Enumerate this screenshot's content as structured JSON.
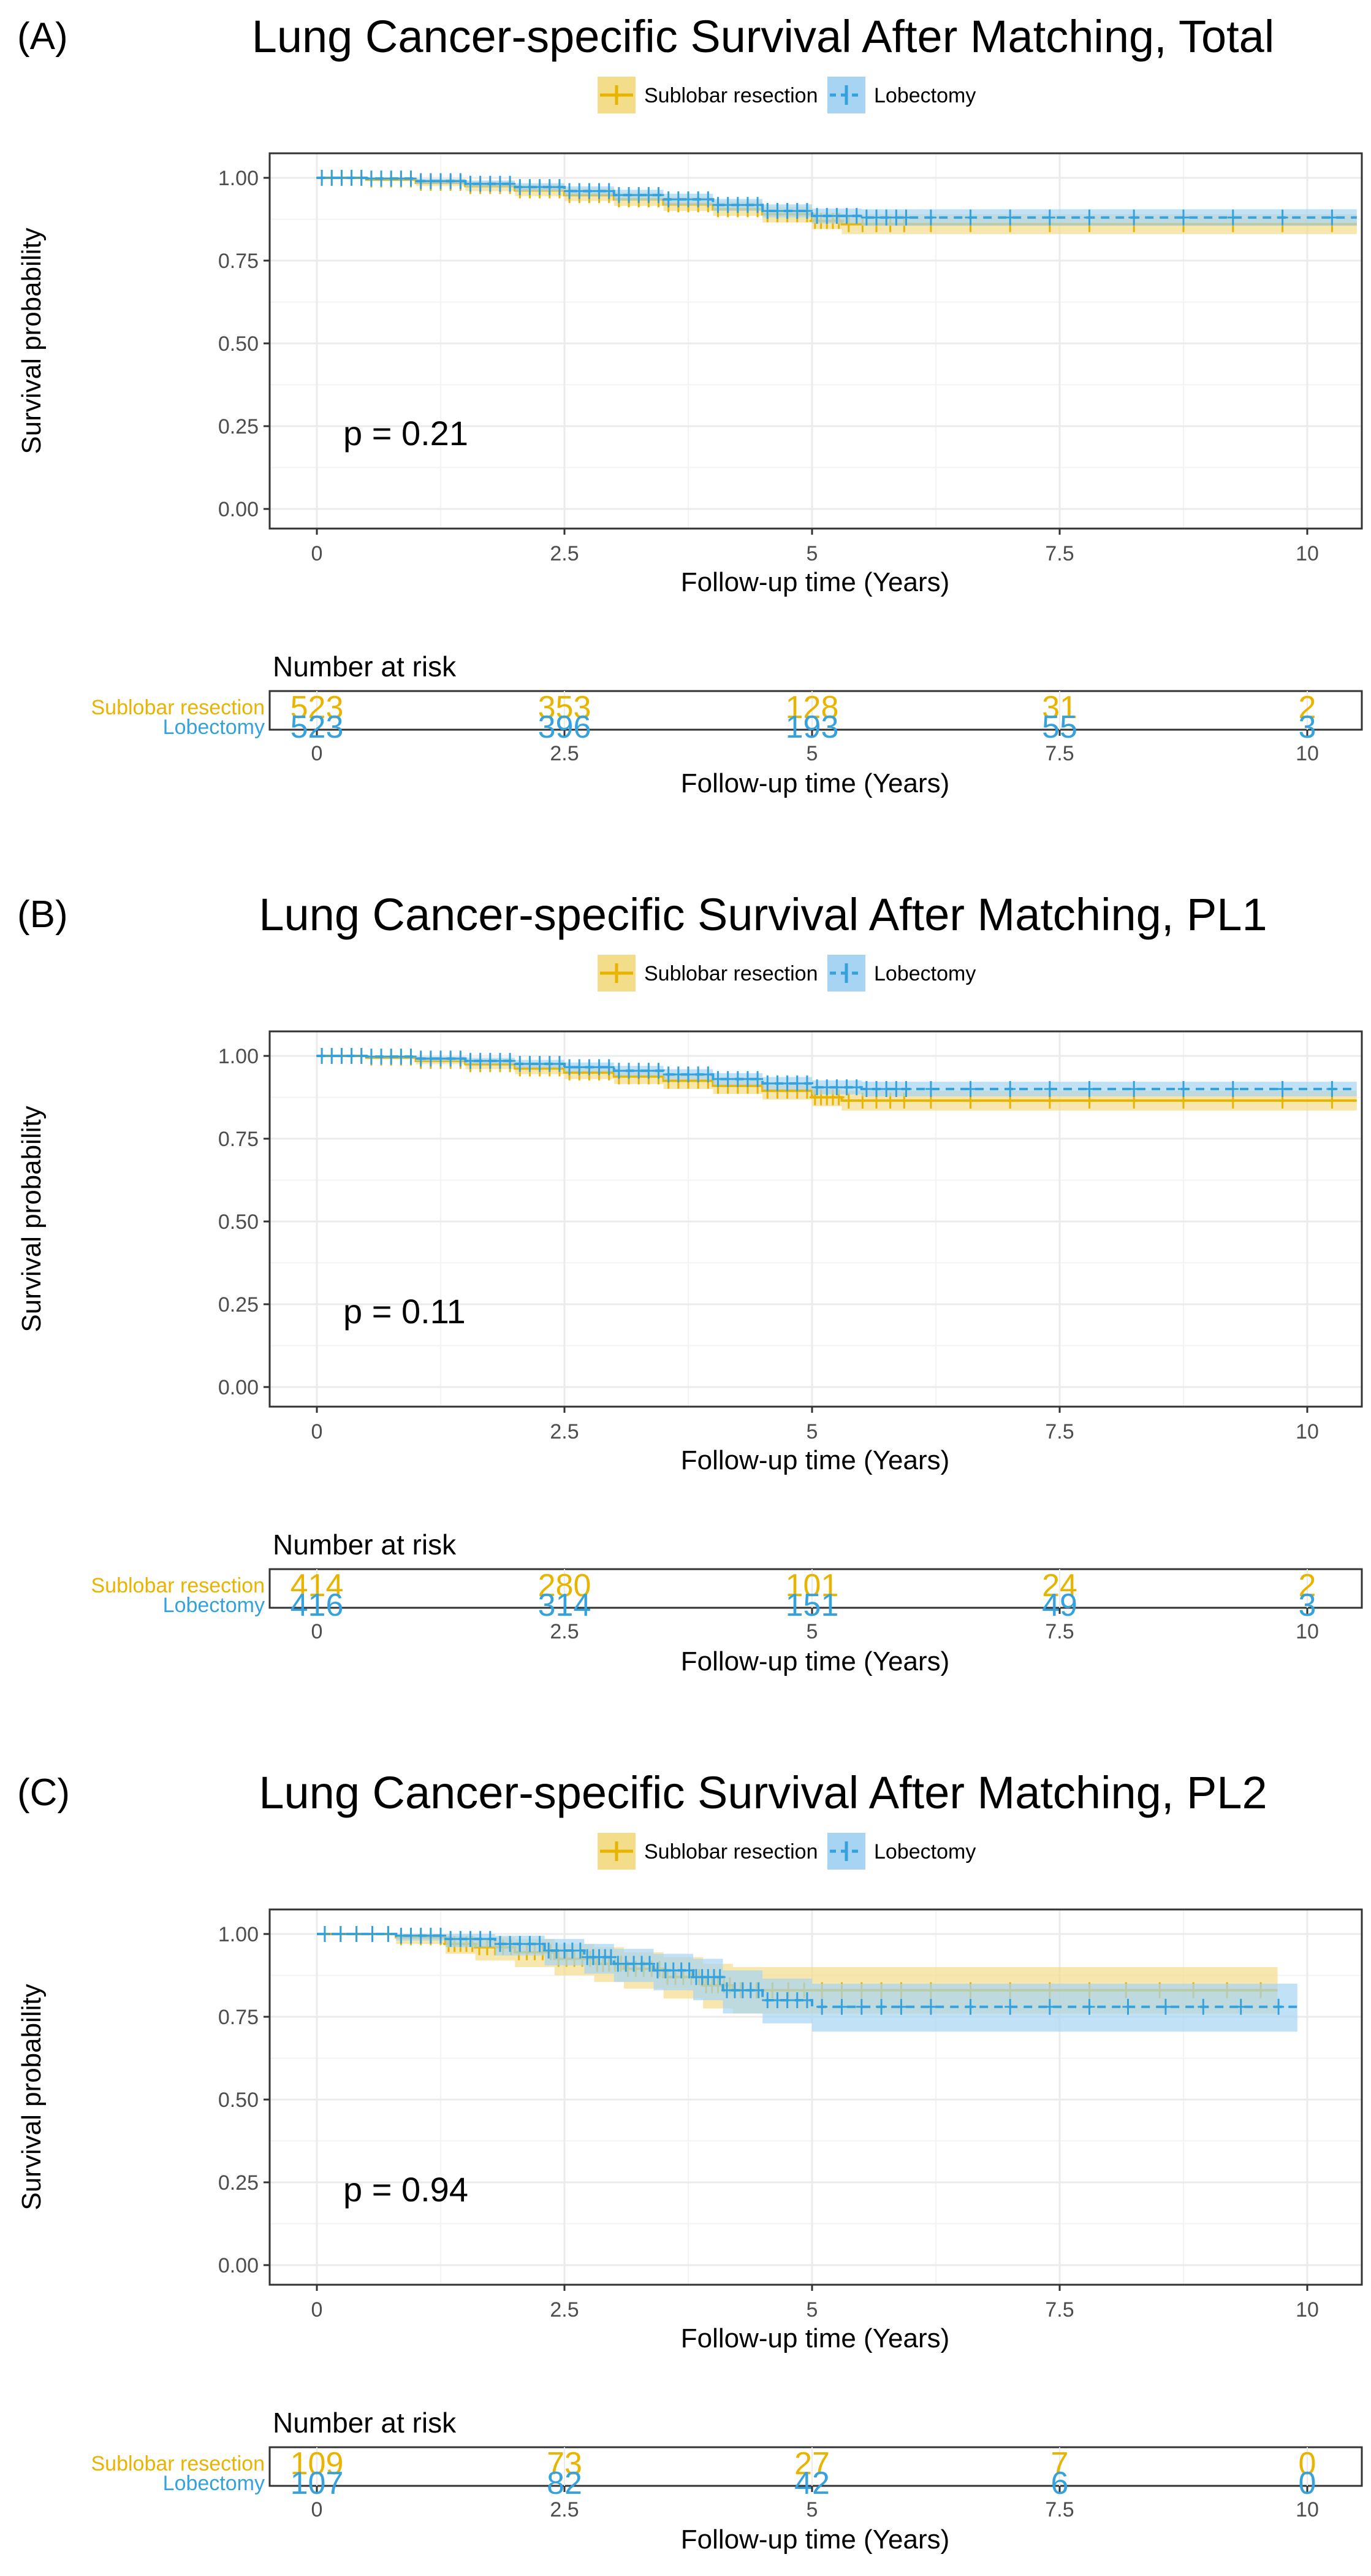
{
  "colors": {
    "sublobar": "#E8B400",
    "lobectomy": "#35A2DE",
    "sublobar_band": "#F3DC8A",
    "lobectomy_band": "#A7D4F2",
    "grid": "#ebebeb",
    "frame": "#333333"
  },
  "chart_data": [
    {
      "type": "line",
      "panel_label": "(A)",
      "title": "Lung Cancer-specific Survival After Matching, Total",
      "xlabel": "Follow-up time (Years)",
      "ylabel": "Survival probability",
      "xlim": [
        0,
        10.5
      ],
      "ylim": [
        0,
        1
      ],
      "xticks": [
        "0",
        "2.5",
        "5",
        "7.5",
        "10"
      ],
      "xtick_values": [
        0,
        2.5,
        5,
        7.5,
        10
      ],
      "yticks": [
        "0.00",
        "0.25",
        "0.50",
        "0.75",
        "1.00"
      ],
      "ytick_values": [
        0,
        0.25,
        0.5,
        0.75,
        1
      ],
      "pvalue": "p = 0.21",
      "legend": [
        "Sublobar resection",
        "Lobectomy"
      ],
      "series": [
        {
          "name": "Sublobar resection",
          "x": [
            0,
            0.5,
            1.0,
            1.5,
            2.0,
            2.5,
            3.0,
            3.5,
            4.0,
            4.5,
            5.0,
            5.3,
            6.0,
            8.0,
            10.5
          ],
          "y": [
            1.0,
            0.995,
            0.985,
            0.975,
            0.962,
            0.948,
            0.935,
            0.92,
            0.905,
            0.89,
            0.87,
            0.86,
            0.86,
            0.86,
            0.86
          ],
          "lower": [
            1.0,
            0.99,
            0.975,
            0.96,
            0.945,
            0.93,
            0.915,
            0.9,
            0.885,
            0.865,
            0.845,
            0.83,
            0.83,
            0.83,
            0.83
          ],
          "upper": [
            1.0,
            1.0,
            0.995,
            0.99,
            0.98,
            0.968,
            0.955,
            0.942,
            0.928,
            0.912,
            0.895,
            0.89,
            0.89,
            0.89,
            0.89
          ]
        },
        {
          "name": "Lobectomy",
          "x": [
            0,
            0.5,
            1.0,
            1.5,
            2.0,
            2.5,
            3.0,
            3.5,
            4.0,
            4.5,
            5.0,
            5.5,
            6.0,
            8.0,
            10.5
          ],
          "y": [
            1.0,
            0.998,
            0.99,
            0.982,
            0.972,
            0.96,
            0.948,
            0.935,
            0.918,
            0.9,
            0.885,
            0.88,
            0.88,
            0.88,
            0.88
          ],
          "lower": [
            1.0,
            0.994,
            0.982,
            0.972,
            0.96,
            0.946,
            0.932,
            0.918,
            0.9,
            0.88,
            0.862,
            0.855,
            0.855,
            0.855,
            0.855
          ],
          "upper": [
            1.0,
            1.0,
            0.997,
            0.992,
            0.984,
            0.974,
            0.964,
            0.952,
            0.936,
            0.92,
            0.907,
            0.905,
            0.905,
            0.905,
            0.905
          ]
        }
      ],
      "risk_table": {
        "title": "Number at risk",
        "rows": [
          {
            "label": "Sublobar resection",
            "values": [
              "523",
              "353",
              "128",
              "31",
              "2"
            ]
          },
          {
            "label": "Lobectomy",
            "values": [
              "523",
              "396",
              "193",
              "55",
              "3"
            ]
          }
        ]
      }
    },
    {
      "type": "line",
      "panel_label": "(B)",
      "title": "Lung Cancer-specific Survival After Matching, PL1",
      "xlabel": "Follow-up time (Years)",
      "ylabel": "Survival probability",
      "xlim": [
        0,
        10.5
      ],
      "ylim": [
        0,
        1
      ],
      "xticks": [
        "0",
        "2.5",
        "5",
        "7.5",
        "10"
      ],
      "xtick_values": [
        0,
        2.5,
        5,
        7.5,
        10
      ],
      "yticks": [
        "0.00",
        "0.25",
        "0.50",
        "0.75",
        "1.00"
      ],
      "ytick_values": [
        0,
        0.25,
        0.5,
        0.75,
        1
      ],
      "pvalue": "p = 0.11",
      "legend": [
        "Sublobar resection",
        "Lobectomy"
      ],
      "series": [
        {
          "name": "Sublobar resection",
          "x": [
            0,
            0.5,
            1.0,
            1.5,
            2.0,
            2.5,
            3.0,
            3.5,
            4.0,
            4.5,
            5.0,
            5.3,
            6.0,
            8.0,
            10.5
          ],
          "y": [
            1.0,
            0.995,
            0.985,
            0.975,
            0.962,
            0.95,
            0.938,
            0.925,
            0.91,
            0.895,
            0.875,
            0.865,
            0.865,
            0.865,
            0.865
          ],
          "lower": [
            1.0,
            0.99,
            0.975,
            0.96,
            0.945,
            0.93,
            0.915,
            0.9,
            0.885,
            0.868,
            0.848,
            0.835,
            0.835,
            0.835,
            0.835
          ],
          "upper": [
            1.0,
            1.0,
            0.995,
            0.99,
            0.98,
            0.97,
            0.96,
            0.948,
            0.935,
            0.92,
            0.9,
            0.895,
            0.895,
            0.895,
            0.895
          ]
        },
        {
          "name": "Lobectomy",
          "x": [
            0,
            0.5,
            1.0,
            1.5,
            2.0,
            2.5,
            3.0,
            3.5,
            4.0,
            4.5,
            5.0,
            5.5,
            6.0,
            8.0,
            10.5
          ],
          "y": [
            1.0,
            0.998,
            0.992,
            0.985,
            0.976,
            0.966,
            0.955,
            0.944,
            0.93,
            0.917,
            0.905,
            0.9,
            0.9,
            0.9,
            0.9
          ],
          "lower": [
            1.0,
            0.994,
            0.984,
            0.975,
            0.964,
            0.952,
            0.94,
            0.928,
            0.912,
            0.898,
            0.884,
            0.878,
            0.878,
            0.878,
            0.878
          ],
          "upper": [
            1.0,
            1.0,
            0.998,
            0.995,
            0.988,
            0.98,
            0.97,
            0.96,
            0.948,
            0.936,
            0.926,
            0.922,
            0.922,
            0.922,
            0.922
          ]
        }
      ],
      "risk_table": {
        "title": "Number at risk",
        "rows": [
          {
            "label": "Sublobar resection",
            "values": [
              "414",
              "280",
              "101",
              "24",
              "2"
            ]
          },
          {
            "label": "Lobectomy",
            "values": [
              "416",
              "314",
              "151",
              "49",
              "3"
            ]
          }
        ]
      }
    },
    {
      "type": "line",
      "panel_label": "(C)",
      "title": "Lung Cancer-specific Survival After Matching, PL2",
      "xlabel": "Follow-up time (Years)",
      "ylabel": "Survival probability",
      "xlim": [
        0,
        10.5
      ],
      "ylim": [
        0,
        1
      ],
      "xticks": [
        "0",
        "2.5",
        "5",
        "7.5",
        "10"
      ],
      "xtick_values": [
        0,
        2.5,
        5,
        7.5,
        10
      ],
      "yticks": [
        "0.00",
        "0.25",
        "0.50",
        "0.75",
        "1.00"
      ],
      "ytick_values": [
        0,
        0.25,
        0.5,
        0.75,
        1
      ],
      "pvalue": "p = 0.94",
      "legend": [
        "Sublobar resection",
        "Lobectomy"
      ],
      "series": [
        {
          "name": "Sublobar resection",
          "x": [
            0,
            0.8,
            1.3,
            1.6,
            2.0,
            2.4,
            2.8,
            3.1,
            3.5,
            3.9,
            4.2,
            5.0,
            6.0,
            8.0,
            9.7
          ],
          "y": [
            1.0,
            0.99,
            0.97,
            0.96,
            0.945,
            0.925,
            0.91,
            0.895,
            0.87,
            0.845,
            0.83,
            0.83,
            0.83,
            0.83,
            0.83
          ],
          "lower": [
            1.0,
            0.97,
            0.94,
            0.92,
            0.9,
            0.875,
            0.855,
            0.835,
            0.805,
            0.775,
            0.76,
            0.76,
            0.76,
            0.76,
            0.76
          ],
          "upper": [
            1.0,
            1.0,
            0.995,
            0.99,
            0.985,
            0.97,
            0.96,
            0.945,
            0.93,
            0.91,
            0.9,
            0.9,
            0.9,
            0.9,
            0.9
          ]
        },
        {
          "name": "Lobectomy",
          "x": [
            0,
            0.8,
            1.3,
            1.8,
            2.3,
            2.7,
            3.0,
            3.4,
            3.8,
            4.1,
            4.5,
            5.0,
            6.0,
            8.0,
            9.9
          ],
          "y": [
            1.0,
            0.995,
            0.985,
            0.97,
            0.95,
            0.93,
            0.91,
            0.89,
            0.87,
            0.83,
            0.8,
            0.78,
            0.78,
            0.78,
            0.78
          ],
          "lower": [
            1.0,
            0.98,
            0.96,
            0.935,
            0.905,
            0.88,
            0.855,
            0.83,
            0.8,
            0.76,
            0.73,
            0.705,
            0.705,
            0.705,
            0.705
          ],
          "upper": [
            1.0,
            1.0,
            1.0,
            0.995,
            0.985,
            0.97,
            0.955,
            0.94,
            0.925,
            0.89,
            0.865,
            0.85,
            0.85,
            0.85,
            0.85
          ]
        }
      ],
      "risk_table": {
        "title": "Number at risk",
        "rows": [
          {
            "label": "Sublobar resection",
            "values": [
              "109",
              "73",
              "27",
              "7",
              "0"
            ]
          },
          {
            "label": "Lobectomy",
            "values": [
              "107",
              "82",
              "42",
              "6",
              "0"
            ]
          }
        ]
      }
    }
  ]
}
